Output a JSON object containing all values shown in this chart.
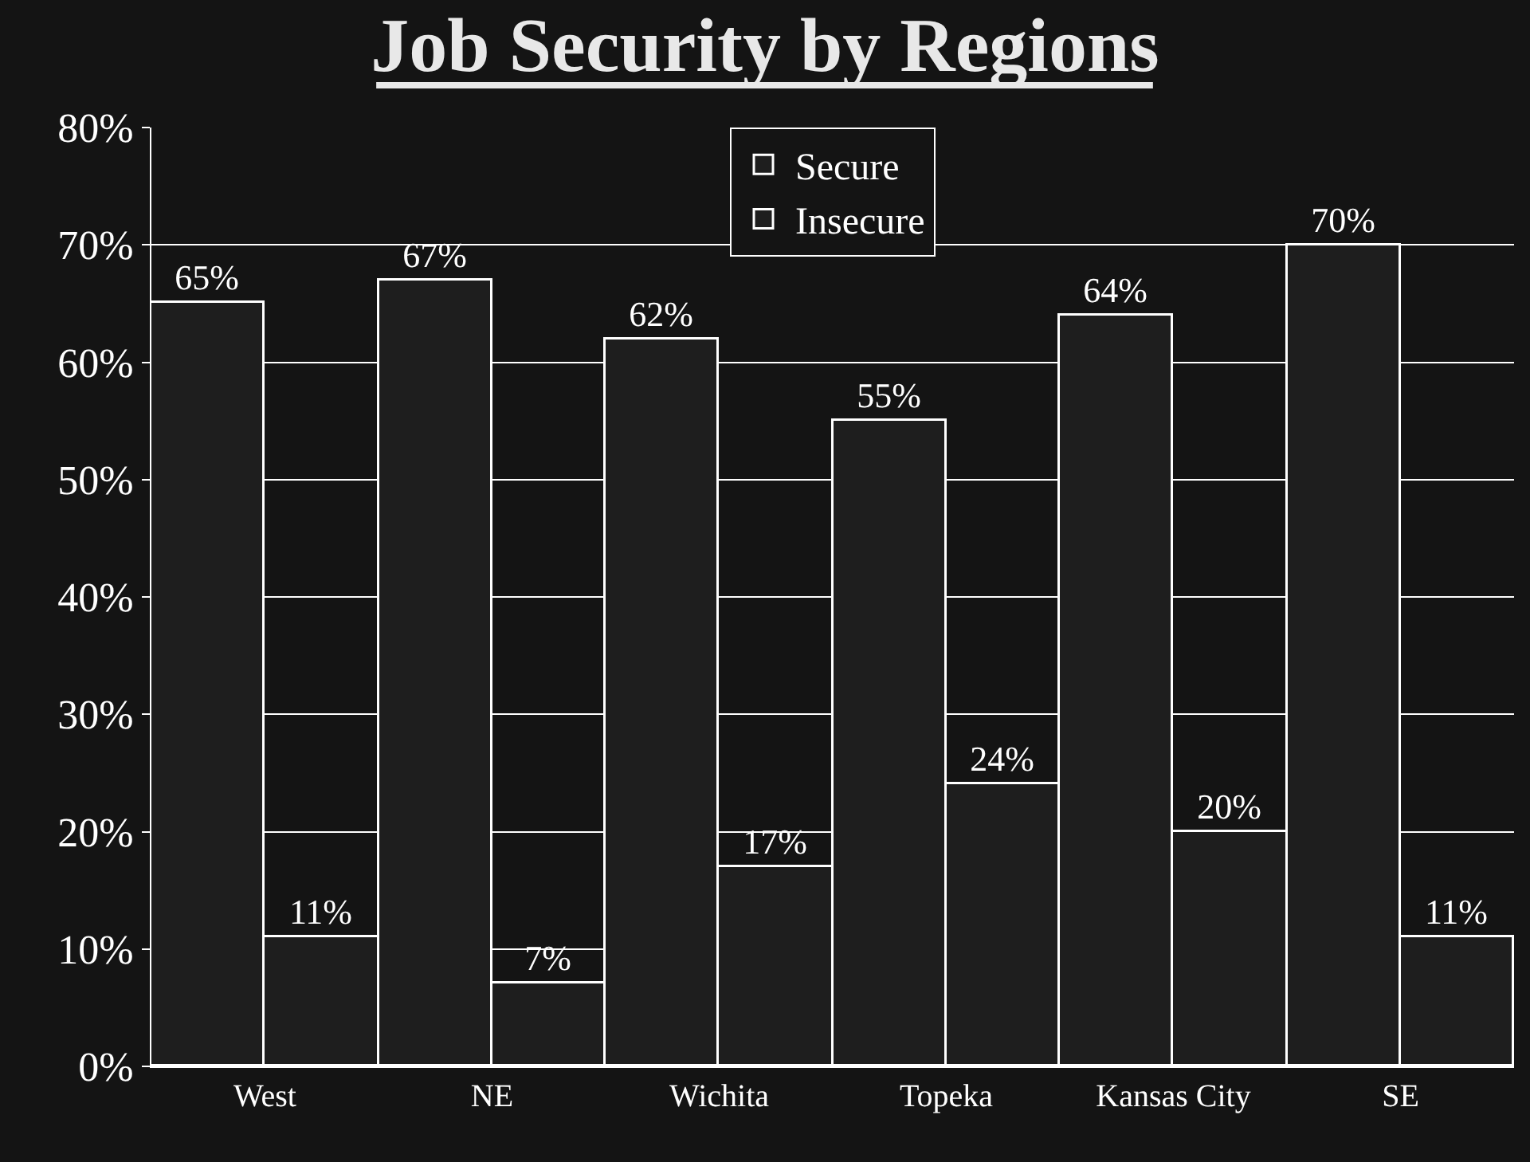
{
  "chart_data": {
    "type": "bar",
    "title": "Job Security by Regions",
    "categories": [
      "West",
      "NE",
      "Wichita",
      "Topeka",
      "Kansas City",
      "SE"
    ],
    "series": [
      {
        "name": "Secure",
        "color": "#1e1e1e",
        "values": [
          65,
          67,
          62,
          55,
          64,
          70
        ],
        "value_labels": [
          "65%",
          "67%",
          "62%",
          "55%",
          "64%",
          "70%"
        ]
      },
      {
        "name": "Insecure",
        "color": "#1e1e1e",
        "values": [
          11,
          7,
          17,
          24,
          20,
          11
        ],
        "value_labels": [
          "11%",
          "7%",
          "17%",
          "24%",
          "20%",
          "11%"
        ]
      }
    ],
    "ylim": [
      0,
      80
    ],
    "yticks": [
      {
        "value": 0,
        "label": "0%"
      },
      {
        "value": 10,
        "label": "10%"
      },
      {
        "value": 20,
        "label": "20%"
      },
      {
        "value": 30,
        "label": "30%"
      },
      {
        "value": 40,
        "label": "40%"
      },
      {
        "value": 50,
        "label": "50%"
      },
      {
        "value": 60,
        "label": "60%"
      },
      {
        "value": 70,
        "label": "70%"
      },
      {
        "value": 80,
        "label": "80%"
      }
    ],
    "grid": "y",
    "legend": "top"
  }
}
